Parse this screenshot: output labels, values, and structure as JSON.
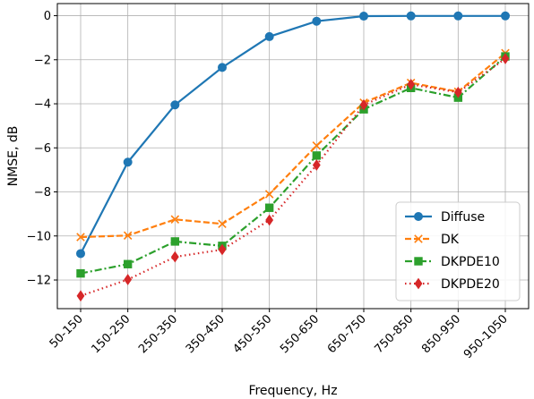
{
  "chart_data": {
    "type": "line",
    "xlabel": "Frequency, Hz",
    "ylabel": "NMSE, dB",
    "categories": [
      "50-150",
      "150-250",
      "250-350",
      "350-450",
      "450-550",
      "550-650",
      "650-750",
      "750-850",
      "850-950",
      "950-1050"
    ],
    "ylim": [
      -13.3,
      0.55
    ],
    "yticks": [
      0,
      -2,
      -4,
      -6,
      -8,
      -10,
      -12
    ],
    "ytick_labels": [
      "0",
      "−2",
      "−4",
      "−6",
      "−8",
      "−10",
      "−12"
    ],
    "grid": true,
    "legend_position": "lower-right",
    "series": [
      {
        "name": "Diffuse",
        "color": "#1f77b4",
        "linestyle": "solid",
        "marker": "circle",
        "values": [
          -10.8,
          -6.65,
          -4.05,
          -2.35,
          -0.95,
          -0.25,
          -0.02,
          -0.01,
          -0.01,
          -0.01
        ]
      },
      {
        "name": "DK",
        "color": "#ff7f0e",
        "linestyle": "dashed",
        "marker": "x",
        "values": [
          -10.05,
          -9.98,
          -9.25,
          -9.45,
          -8.1,
          -5.9,
          -3.95,
          -3.05,
          -3.45,
          -1.7
        ]
      },
      {
        "name": "DKPDE10",
        "color": "#2ca02c",
        "linestyle": "dashdot",
        "marker": "square",
        "values": [
          -11.7,
          -11.28,
          -10.25,
          -10.45,
          -8.72,
          -6.35,
          -4.25,
          -3.28,
          -3.72,
          -1.85
        ]
      },
      {
        "name": "DKPDE20",
        "color": "#d62728",
        "linestyle": "dotted",
        "marker": "diamond",
        "values": [
          -12.72,
          -11.98,
          -10.95,
          -10.62,
          -9.28,
          -6.78,
          -4.05,
          -3.12,
          -3.48,
          -1.95
        ]
      }
    ]
  }
}
